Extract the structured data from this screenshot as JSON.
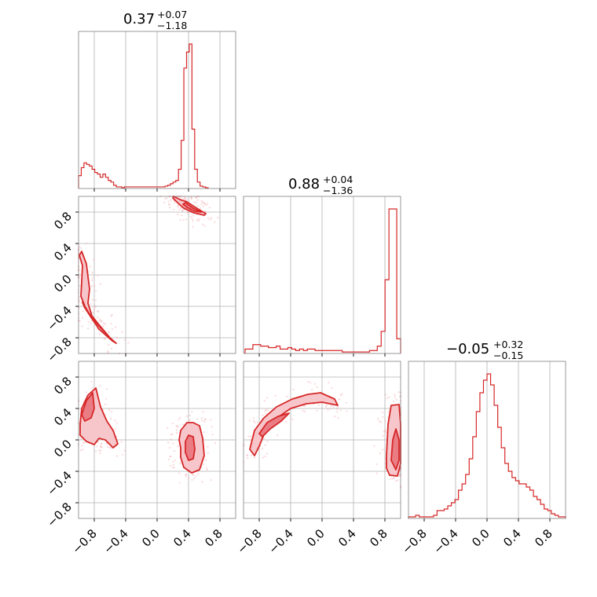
{
  "colors": {
    "accent": "#d62728",
    "contour_fill_outer": "#f7c6ca",
    "contour_fill_inner": "#ea7c84",
    "scatter": "#f4a6ad",
    "grid": "#b0b0b0",
    "frame": "#808080"
  },
  "chart_data": {
    "type": "corner",
    "grid": true,
    "parameters": [
      "p0",
      "p1",
      "p2"
    ],
    "axis_range": [
      -1.0,
      1.0
    ],
    "x_ticks": [
      "−0.8",
      "−0.4",
      "0.0",
      "0.4",
      "0.8"
    ],
    "y_ticks_row1": [
      "0.8",
      "0.4",
      "0.0",
      "−0.4",
      "−0.8"
    ],
    "y_ticks_row2": [
      "0.8",
      "0.4",
      "0.0",
      "−0.4",
      "−0.8"
    ],
    "titles": [
      {
        "median": "0.37",
        "plus": "+0.07",
        "minus": "−1.18"
      },
      {
        "median": "0.88",
        "plus": "+0.04",
        "minus": "−1.36"
      },
      {
        "median": "−0.05",
        "plus": "+0.32",
        "minus": "−0.15"
      }
    ],
    "histograms": [
      {
        "param": 0,
        "bin_edges_range": [
          -1.0,
          0.65
        ],
        "counts": [
          8,
          13,
          16,
          15,
          14,
          12,
          10,
          9,
          7,
          9,
          7,
          5,
          4,
          2,
          1,
          1,
          0.5,
          1,
          1,
          1,
          1,
          1,
          1,
          1,
          1,
          1,
          1,
          1,
          1,
          1,
          1,
          1,
          1.5,
          2,
          3,
          4,
          5,
          12,
          30,
          75,
          85,
          90,
          37,
          12,
          4,
          1.5,
          1,
          0.5
        ]
      },
      {
        "param": 1,
        "bin_edges_range": [
          -0.98,
          1.0
        ],
        "counts": [
          3,
          3,
          6,
          6,
          5,
          5,
          4,
          4,
          5,
          3,
          3,
          4,
          3,
          2,
          3,
          2,
          3,
          3,
          2,
          2,
          2,
          2,
          2,
          2,
          2,
          1,
          1,
          1,
          1,
          1,
          1,
          1,
          2,
          2,
          5,
          15,
          50,
          98,
          98,
          10
        ]
      },
      {
        "param": 2,
        "bin_edges_range": [
          -1.0,
          1.0
        ],
        "counts": [
          1,
          1,
          2,
          1,
          1,
          1,
          1,
          2,
          5,
          5,
          6,
          8,
          10,
          12,
          18,
          22,
          28,
          38,
          52,
          68,
          80,
          88,
          92,
          85,
          72,
          58,
          45,
          35,
          30,
          26,
          24,
          22,
          22,
          20,
          18,
          14,
          12,
          9,
          6,
          5,
          3,
          2,
          1,
          1
        ]
      }
    ],
    "pairs": [
      {
        "x_param": 0,
        "y_param": 1,
        "contours_outer": [
          [
            [
              0.21,
              1.0
            ],
            [
              0.29,
              0.96
            ],
            [
              0.38,
              0.93
            ],
            [
              0.52,
              0.84
            ],
            [
              0.62,
              0.78
            ],
            [
              0.6,
              0.76
            ],
            [
              0.47,
              0.79
            ],
            [
              0.34,
              0.85
            ],
            [
              0.26,
              0.92
            ],
            [
              0.2,
              0.98
            ]
          ],
          [
            [
              -0.99,
              0.25
            ],
            [
              -0.95,
              0.12
            ],
            [
              -0.96,
              -0.08
            ],
            [
              -0.97,
              -0.27
            ],
            [
              -0.9,
              -0.45
            ],
            [
              -0.74,
              -0.69
            ],
            [
              -0.57,
              -0.84
            ],
            [
              -0.52,
              -0.87
            ],
            [
              -0.6,
              -0.8
            ],
            [
              -0.72,
              -0.66
            ],
            [
              -0.83,
              -0.52
            ],
            [
              -0.88,
              -0.36
            ],
            [
              -0.86,
              -0.18
            ],
            [
              -0.88,
              -0.02
            ],
            [
              -0.9,
              0.14
            ],
            [
              -0.96,
              0.3
            ]
          ]
        ],
        "contours_inner": [
          [
            [
              0.36,
              0.92
            ],
            [
              0.46,
              0.85
            ],
            [
              0.56,
              0.8
            ],
            [
              0.48,
              0.81
            ],
            [
              0.38,
              0.86
            ],
            [
              0.33,
              0.9
            ]
          ],
          [
            [
              -0.95,
              -0.35
            ],
            [
              -0.86,
              -0.5
            ],
            [
              -0.74,
              -0.65
            ],
            [
              -0.62,
              -0.78
            ],
            [
              -0.7,
              -0.68
            ],
            [
              -0.82,
              -0.55
            ],
            [
              -0.92,
              -0.42
            ]
          ]
        ]
      },
      {
        "x_param": 0,
        "y_param": 2,
        "contours_outer": [
          [
            [
              -0.98,
              0.2
            ],
            [
              -0.96,
              0.4
            ],
            [
              -0.88,
              0.57
            ],
            [
              -0.78,
              0.66
            ],
            [
              -0.72,
              0.42
            ],
            [
              -0.64,
              0.24
            ],
            [
              -0.56,
              0.12
            ],
            [
              -0.5,
              -0.05
            ],
            [
              -0.56,
              -0.1
            ],
            [
              -0.66,
              0.0
            ],
            [
              -0.74,
              0.02
            ],
            [
              -0.8,
              -0.06
            ],
            [
              -0.9,
              -0.02
            ],
            [
              -0.98,
              0.06
            ]
          ],
          [
            [
              0.28,
              0.0
            ],
            [
              0.3,
              0.12
            ],
            [
              0.38,
              0.22
            ],
            [
              0.46,
              0.22
            ],
            [
              0.54,
              0.18
            ],
            [
              0.58,
              0.02
            ],
            [
              0.6,
              -0.2
            ],
            [
              0.54,
              -0.38
            ],
            [
              0.44,
              -0.42
            ],
            [
              0.34,
              -0.35
            ],
            [
              0.3,
              -0.22
            ],
            [
              0.3,
              -0.1
            ]
          ]
        ],
        "contours_inner": [
          [
            [
              -0.96,
              0.32
            ],
            [
              -0.9,
              0.5
            ],
            [
              -0.82,
              0.6
            ],
            [
              -0.8,
              0.4
            ],
            [
              -0.84,
              0.28
            ],
            [
              -0.92,
              0.24
            ]
          ],
          [
            [
              0.36,
              -0.02
            ],
            [
              0.4,
              0.06
            ],
            [
              0.46,
              0.04
            ],
            [
              0.48,
              -0.12
            ],
            [
              0.46,
              -0.24
            ],
            [
              0.4,
              -0.26
            ],
            [
              0.36,
              -0.16
            ]
          ]
        ]
      },
      {
        "x_param": 1,
        "y_param": 2,
        "contours_outer": [
          [
            [
              -0.92,
              -0.12
            ],
            [
              -0.86,
              0.12
            ],
            [
              -0.74,
              0.28
            ],
            [
              -0.58,
              0.42
            ],
            [
              -0.38,
              0.52
            ],
            [
              -0.18,
              0.58
            ],
            [
              -0.02,
              0.6
            ],
            [
              0.16,
              0.52
            ],
            [
              0.2,
              0.44
            ],
            [
              0.0,
              0.48
            ],
            [
              -0.2,
              0.46
            ],
            [
              -0.4,
              0.4
            ],
            [
              -0.6,
              0.26
            ],
            [
              -0.72,
              0.12
            ],
            [
              -0.8,
              -0.08
            ],
            [
              -0.86,
              -0.2
            ]
          ],
          [
            [
              0.82,
              -0.2
            ],
            [
              0.84,
              0.2
            ],
            [
              0.88,
              0.44
            ],
            [
              0.98,
              0.45
            ],
            [
              1.0,
              0.2
            ],
            [
              1.0,
              -0.3
            ],
            [
              0.96,
              -0.46
            ],
            [
              0.86,
              -0.45
            ],
            [
              0.82,
              -0.36
            ]
          ]
        ],
        "contours_inner": [
          [
            [
              -0.8,
              0.08
            ],
            [
              -0.7,
              0.22
            ],
            [
              -0.56,
              0.3
            ],
            [
              -0.42,
              0.34
            ],
            [
              -0.52,
              0.24
            ],
            [
              -0.66,
              0.14
            ],
            [
              -0.76,
              0.04
            ]
          ],
          [
            [
              0.88,
              -0.26
            ],
            [
              0.9,
              0.0
            ],
            [
              0.94,
              0.14
            ],
            [
              0.98,
              0.0
            ],
            [
              0.98,
              -0.26
            ],
            [
              0.94,
              -0.38
            ]
          ]
        ]
      }
    ]
  }
}
